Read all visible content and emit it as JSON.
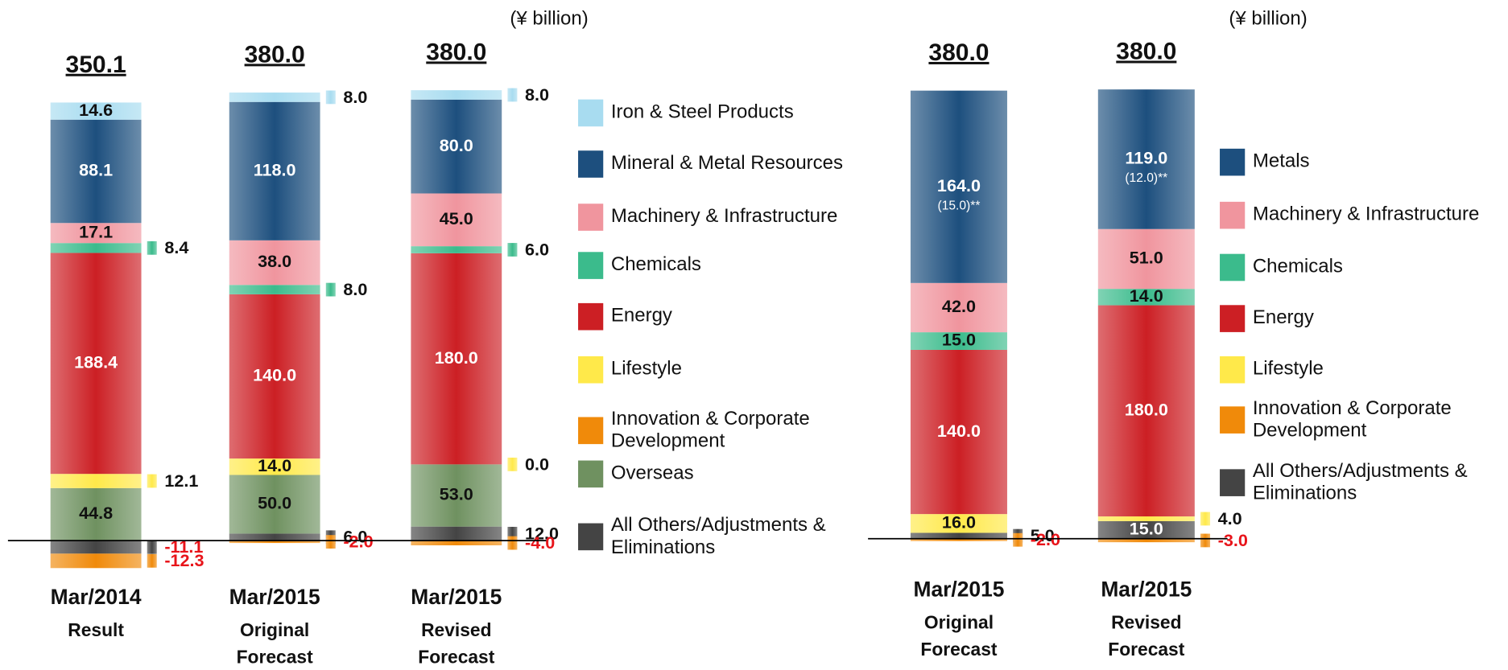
{
  "chart_data": [
    {
      "type": "bar",
      "stacked": true,
      "unit_label": "(¥ billion)",
      "ylim": [
        -30,
        390
      ],
      "categories": [
        "Mar/2014",
        "Mar/2015",
        "Mar/2015"
      ],
      "sublabels": [
        "Result",
        "Original Forecast",
        "Revised Forecast"
      ],
      "totals": [
        350.1,
        380,
        380
      ],
      "total_labels": [
        "350.1",
        "380.0",
        "380.0"
      ],
      "series": [
        {
          "name": "Iron & Steel Products",
          "color": "#a8dcf0",
          "values": [
            14.6,
            8,
            8
          ],
          "value_labels": [
            "14.6",
            "8.0",
            "8.0"
          ]
        },
        {
          "name": "Mineral & Metal Resources",
          "color": "#1d4f7e",
          "values": [
            88.1,
            118,
            80
          ],
          "value_labels": [
            "88.1",
            "118.0",
            "80.0"
          ]
        },
        {
          "name": "Machinery & Infrastructure",
          "color": "#f0959e",
          "values": [
            17.1,
            38,
            45
          ],
          "value_labels": [
            "17.1",
            "38.0",
            "45.0"
          ]
        },
        {
          "name": "Chemicals",
          "color": "#3bbb8c",
          "values": [
            8.4,
            8,
            6
          ],
          "value_labels": [
            "8.4",
            "8.0",
            "6.0"
          ]
        },
        {
          "name": "Energy",
          "color": "#cc1f24",
          "values": [
            188.4,
            140,
            180
          ],
          "value_labels": [
            "188.4",
            "140.0",
            "180.0"
          ]
        },
        {
          "name": "Lifestyle",
          "color": "#ffe94a",
          "values": [
            12.1,
            14,
            0
          ],
          "value_labels": [
            "12.1",
            "14.0",
            "0.0"
          ]
        },
        {
          "name": "Innovation & Corporate Development",
          "color": "#f08a0a",
          "values": [
            -12.3,
            -2,
            -4
          ],
          "value_labels": [
            "-12.3",
            "-2.0",
            "-4.0"
          ]
        },
        {
          "name": "Overseas",
          "color": "#6f9160",
          "values": [
            44.8,
            50,
            53
          ],
          "value_labels": [
            "44.8",
            "50.0",
            "53.0"
          ]
        },
        {
          "name": "All Others/Adjustments & Eliminations",
          "color": "#444444",
          "values": [
            -11.1,
            6,
            12
          ],
          "value_labels": [
            "-11.1",
            "6.0",
            "12.0"
          ]
        }
      ]
    },
    {
      "type": "bar",
      "stacked": true,
      "unit_label": "(¥ billion)",
      "ylim": [
        -30,
        390
      ],
      "categories": [
        "Mar/2015",
        "Mar/2015"
      ],
      "sublabels": [
        "Original Forecast",
        "Revised Forecast"
      ],
      "totals": [
        380,
        380
      ],
      "total_labels": [
        "380.0",
        "380.0"
      ],
      "annotations": [
        "(15.0)**",
        "(12.0)**"
      ],
      "series": [
        {
          "name": "Metals",
          "color": "#1d4f7e",
          "values": [
            164,
            119
          ],
          "value_labels": [
            "164.0",
            "119.0"
          ]
        },
        {
          "name": "Machinery & Infrastructure",
          "color": "#f0959e",
          "values": [
            42,
            51
          ],
          "value_labels": [
            "42.0",
            "51.0"
          ]
        },
        {
          "name": "Chemicals",
          "color": "#3bbb8c",
          "values": [
            15,
            14
          ],
          "value_labels": [
            "15.0",
            "14.0"
          ]
        },
        {
          "name": "Energy",
          "color": "#cc1f24",
          "values": [
            140,
            180
          ],
          "value_labels": [
            "140.0",
            "180.0"
          ]
        },
        {
          "name": "Lifestyle",
          "color": "#ffe94a",
          "values": [
            16,
            4
          ],
          "value_labels": [
            "16.0",
            "4.0"
          ]
        },
        {
          "name": "Innovation & Corporate Development",
          "color": "#f08a0a",
          "values": [
            -2,
            -3
          ],
          "value_labels": [
            "-2.0",
            "-3.0"
          ]
        },
        {
          "name": "All Others/Adjustments & Eliminations",
          "color": "#444444",
          "values": [
            5,
            15
          ],
          "value_labels": [
            "5.0",
            "15.0"
          ]
        }
      ]
    }
  ]
}
